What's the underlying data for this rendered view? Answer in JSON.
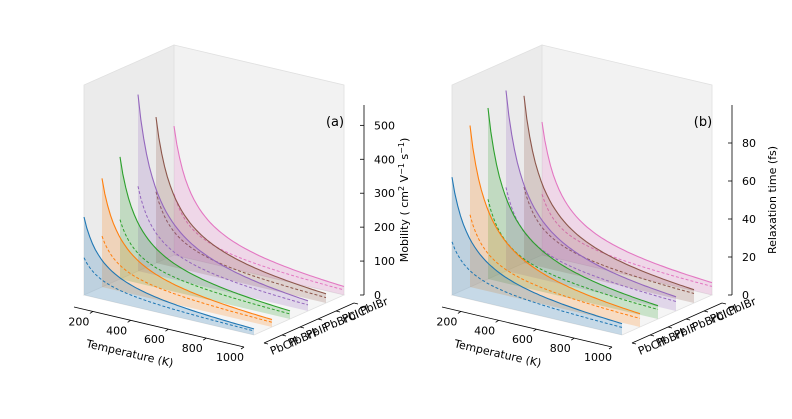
{
  "chart_data": [
    {
      "type": "area",
      "panel_label": "(a)",
      "xlabel": "Temperature (K)",
      "zlabel": "Mobility ( cm$^2$ V$^{-1}$ s$^{-1}$)",
      "zlabel_text": {
        "pre": "Mobility ( cm",
        "sup1": "2",
        "mid": " V",
        "sup2": "−1",
        "mid2": " s",
        "sup3": "−1",
        "post": ")"
      },
      "x_ticks": [
        200,
        400,
        600,
        800,
        1000
      ],
      "z_ticks": [
        0,
        100,
        200,
        300,
        400,
        500
      ],
      "xlim": [
        100,
        1000
      ],
      "zlim": [
        0,
        560
      ],
      "categories": [
        "PbClF",
        "PbBrF",
        "PbIF",
        "PbBrCl",
        "PbICl",
        "PbIBr"
      ],
      "series": [
        {
          "name": "PbClF",
          "color": "#1f77b4",
          "upper_at_100K": 230,
          "upper_at_1000K": 18,
          "mid_at_100K": 110,
          "mid_at_1000K": 12
        },
        {
          "name": "PbBrF",
          "color": "#ff7f0e",
          "upper_at_100K": 320,
          "upper_at_1000K": 22,
          "mid_at_100K": 150,
          "mid_at_1000K": 14
        },
        {
          "name": "PbIF",
          "color": "#2ca02c",
          "upper_at_100K": 360,
          "upper_at_1000K": 24,
          "mid_at_100K": 175,
          "mid_at_1000K": 15
        },
        {
          "name": "PbBrCl",
          "color": "#9467bd",
          "upper_at_100K": 520,
          "upper_at_1000K": 30,
          "mid_at_100K": 250,
          "mid_at_1000K": 18
        },
        {
          "name": "PbICl",
          "color": "#8c564b",
          "upper_at_100K": 430,
          "upper_at_1000K": 27,
          "mid_at_100K": 210,
          "mid_at_1000K": 16
        },
        {
          "name": "PbIBr",
          "color": "#e377c2",
          "upper_at_100K": 380,
          "upper_at_1000K": 25,
          "mid_at_100K": 180,
          "mid_at_1000K": 15
        }
      ]
    },
    {
      "type": "area",
      "panel_label": "(b)",
      "xlabel": "Temperature (K)",
      "zlabel": "Relaxation time (fs)",
      "x_ticks": [
        200,
        400,
        600,
        800,
        1000
      ],
      "z_ticks": [
        0,
        20,
        40,
        60,
        80
      ],
      "xlim": [
        100,
        1000
      ],
      "zlim": [
        0,
        100
      ],
      "categories": [
        "PbClF",
        "PbBrF",
        "PbIF",
        "PbBrCl",
        "PbICl",
        "PbIBr"
      ],
      "series": [
        {
          "name": "PbClF",
          "color": "#1f77b4",
          "upper_at_100K": 62,
          "upper_at_1000K": 6,
          "mid_at_100K": 28,
          "mid_at_1000K": 4
        },
        {
          "name": "PbBrF",
          "color": "#ff7f0e",
          "upper_at_100K": 85,
          "upper_at_1000K": 7,
          "mid_at_100K": 38,
          "mid_at_1000K": 4.5
        },
        {
          "name": "PbIF",
          "color": "#2ca02c",
          "upper_at_100K": 90,
          "upper_at_1000K": 7,
          "mid_at_100K": 42,
          "mid_at_1000K": 5
        },
        {
          "name": "PbBrCl",
          "color": "#9467bd",
          "upper_at_100K": 95,
          "upper_at_1000K": 7.5,
          "mid_at_100K": 44,
          "mid_at_1000K": 5
        },
        {
          "name": "PbICl",
          "color": "#8c564b",
          "upper_at_100K": 88,
          "upper_at_1000K": 7,
          "mid_at_100K": 40,
          "mid_at_1000K": 5
        },
        {
          "name": "PbIBr",
          "color": "#e377c2",
          "upper_at_100K": 70,
          "upper_at_1000K": 6.5,
          "mid_at_100K": 32,
          "mid_at_1000K": 4.5
        }
      ]
    }
  ]
}
